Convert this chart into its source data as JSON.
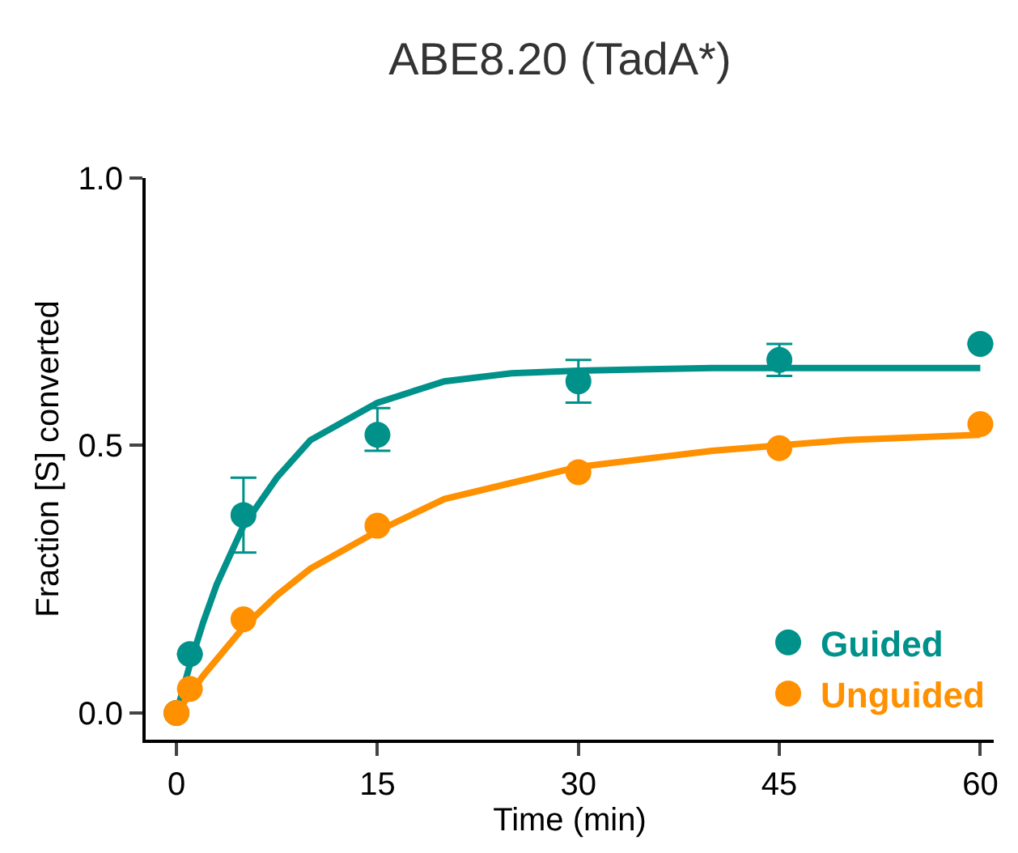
{
  "chart_data": {
    "type": "scatter",
    "title": "ABE8.20 (TadA*)",
    "xlabel": "Time (min)",
    "ylabel": "Fraction [S] converted",
    "x": [
      0,
      1,
      5,
      15,
      30,
      45,
      60
    ],
    "series": [
      {
        "name": "Guided",
        "marker": "circle",
        "color": "#00918a",
        "values": [
          0,
          0.11,
          0.37,
          0.52,
          0.62,
          0.66,
          0.69
        ],
        "errors": [
          null,
          null,
          [
            0.3,
            0.44
          ],
          [
            0.49,
            0.57
          ],
          [
            0.58,
            0.66
          ],
          [
            0.63,
            0.69
          ],
          null
        ]
      },
      {
        "name": "Unguided",
        "marker": "circle",
        "color": "#ff9000",
        "values": [
          0,
          0.045,
          0.175,
          0.35,
          0.45,
          0.495,
          0.54
        ]
      },
      {
        "type": "line",
        "marker": "none",
        "color": "#00918a",
        "x": [
          0,
          1,
          2,
          3,
          5,
          7.5,
          10,
          15,
          20,
          25,
          30,
          40,
          50,
          60
        ],
        "values": [
          0,
          0.09,
          0.17,
          0.24,
          0.35,
          0.44,
          0.51,
          0.58,
          0.62,
          0.635,
          0.64,
          0.645,
          0.645,
          0.645
        ]
      },
      {
        "type": "line",
        "marker": "none",
        "color": "#ff9000",
        "x": [
          0,
          1,
          2,
          3,
          5,
          7.5,
          10,
          15,
          20,
          25,
          30,
          40,
          50,
          60
        ],
        "values": [
          0,
          0.035,
          0.07,
          0.1,
          0.16,
          0.22,
          0.27,
          0.34,
          0.4,
          0.43,
          0.46,
          0.49,
          0.51,
          0.52
        ]
      }
    ],
    "xlim": [
      -2.3,
      61
    ],
    "xticks": [
      0,
      15,
      30,
      45,
      60
    ],
    "ylim": [
      -0.05,
      1.0
    ],
    "yticks": [
      {
        "value": 0,
        "label": "0.0"
      },
      {
        "value": 0.5,
        "label": "0.5"
      },
      {
        "value": 1.0,
        "label": "1.0"
      }
    ],
    "legend": "bottom right",
    "line_style": "solid"
  }
}
